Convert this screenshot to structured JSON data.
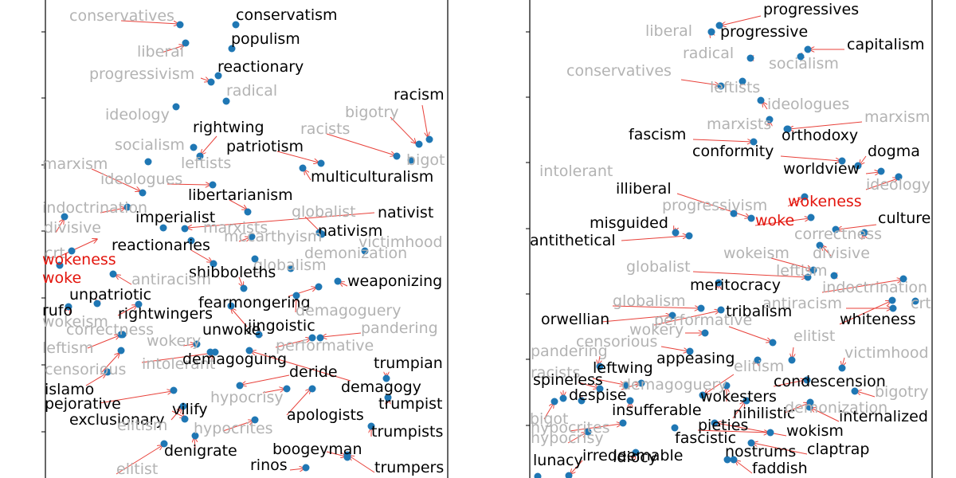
{
  "colors": {
    "dot": "#1f77b4",
    "arrow": "#e8413a",
    "black": "#000000",
    "gray": "#b3b3b3",
    "red": "#e3140c"
  },
  "panels": [
    {
      "id": "left",
      "words": [
        {
          "t": "conservatives",
          "s": "gray"
        },
        {
          "t": "conservatism",
          "s": "black"
        },
        {
          "t": "populism",
          "s": "black"
        },
        {
          "t": "liberal",
          "s": "gray"
        },
        {
          "t": "reactionary",
          "s": "black"
        },
        {
          "t": "progressivism",
          "s": "gray"
        },
        {
          "t": "radical",
          "s": "gray"
        },
        {
          "t": "racism",
          "s": "black"
        },
        {
          "t": "ideology",
          "s": "gray"
        },
        {
          "t": "bigotry",
          "s": "gray"
        },
        {
          "t": "rightwing",
          "s": "black"
        },
        {
          "t": "racists",
          "s": "gray"
        },
        {
          "t": "patriotism",
          "s": "black"
        },
        {
          "t": "socialism",
          "s": "gray"
        },
        {
          "t": "bigot",
          "s": "gray"
        },
        {
          "t": "marxism",
          "s": "gray"
        },
        {
          "t": "leftists",
          "s": "gray"
        },
        {
          "t": "multiculturalism",
          "s": "black"
        },
        {
          "t": "ideologues",
          "s": "gray"
        },
        {
          "t": "libertarianism",
          "s": "black"
        },
        {
          "t": "indoctrination",
          "s": "gray"
        },
        {
          "t": "globalist",
          "s": "gray"
        },
        {
          "t": "nativist",
          "s": "black"
        },
        {
          "t": "imperialist",
          "s": "black"
        },
        {
          "t": "divisive",
          "s": "gray"
        },
        {
          "t": "marxists",
          "s": "gray"
        },
        {
          "t": "nativism",
          "s": "black"
        },
        {
          "t": "mccarthyism",
          "s": "gray"
        },
        {
          "t": "victimhood",
          "s": "gray"
        },
        {
          "t": "reactionaries",
          "s": "black"
        },
        {
          "t": "crt",
          "s": "gray"
        },
        {
          "t": "demonization",
          "s": "gray"
        },
        {
          "t": "wokeness",
          "s": "red"
        },
        {
          "t": "globalism",
          "s": "gray"
        },
        {
          "t": "shibboleths",
          "s": "black"
        },
        {
          "t": "woke",
          "s": "red"
        },
        {
          "t": "antiracism",
          "s": "gray"
        },
        {
          "t": "weaponizing",
          "s": "black"
        },
        {
          "t": "unpatriotic",
          "s": "black"
        },
        {
          "t": "fearmongering",
          "s": "black"
        },
        {
          "t": "rufo",
          "s": "black"
        },
        {
          "t": "rightwingers",
          "s": "black"
        },
        {
          "t": "demagoguery",
          "s": "gray"
        },
        {
          "t": "wokeism",
          "s": "gray"
        },
        {
          "t": "jingoistic",
          "s": "black"
        },
        {
          "t": "correctness",
          "s": "gray"
        },
        {
          "t": "unwoke",
          "s": "black"
        },
        {
          "t": "pandering",
          "s": "gray"
        },
        {
          "t": "wokery",
          "s": "gray"
        },
        {
          "t": "leftism",
          "s": "gray"
        },
        {
          "t": "performative",
          "s": "gray"
        },
        {
          "t": "intolerant",
          "s": "gray"
        },
        {
          "t": "demagoguing",
          "s": "black"
        },
        {
          "t": "trumpian",
          "s": "black"
        },
        {
          "t": "censorious",
          "s": "gray"
        },
        {
          "t": "deride",
          "s": "black"
        },
        {
          "t": "islamo",
          "s": "black"
        },
        {
          "t": "demagogy",
          "s": "black"
        },
        {
          "t": "hypocrisy",
          "s": "gray"
        },
        {
          "t": "pejorative",
          "s": "black"
        },
        {
          "t": "trumpist",
          "s": "black"
        },
        {
          "t": "vilify",
          "s": "black"
        },
        {
          "t": "apologists",
          "s": "black"
        },
        {
          "t": "exclusionary",
          "s": "black"
        },
        {
          "t": "elitism",
          "s": "gray"
        },
        {
          "t": "hypocrites",
          "s": "gray"
        },
        {
          "t": "trumpists",
          "s": "black"
        },
        {
          "t": "denigrate",
          "s": "black"
        },
        {
          "t": "boogeyman",
          "s": "black"
        },
        {
          "t": "elitist",
          "s": "gray"
        },
        {
          "t": "rinos",
          "s": "black"
        },
        {
          "t": "trumpers",
          "s": "black"
        }
      ]
    },
    {
      "id": "right",
      "words": [
        {
          "t": "progressives",
          "s": "black"
        },
        {
          "t": "liberal",
          "s": "gray"
        },
        {
          "t": "progressive",
          "s": "black"
        },
        {
          "t": "capitalism",
          "s": "black"
        },
        {
          "t": "radical",
          "s": "gray"
        },
        {
          "t": "socialism",
          "s": "gray"
        },
        {
          "t": "conservatives",
          "s": "gray"
        },
        {
          "t": "leftists",
          "s": "gray"
        },
        {
          "t": "ideologues",
          "s": "gray"
        },
        {
          "t": "marxism",
          "s": "gray"
        },
        {
          "t": "marxists",
          "s": "gray"
        },
        {
          "t": "fascism",
          "s": "black"
        },
        {
          "t": "orthodoxy",
          "s": "black"
        },
        {
          "t": "dogma",
          "s": "black"
        },
        {
          "t": "conformity",
          "s": "black"
        },
        {
          "t": "worldview",
          "s": "black"
        },
        {
          "t": "intolerant",
          "s": "gray"
        },
        {
          "t": "ideology",
          "s": "gray"
        },
        {
          "t": "illiberal",
          "s": "black"
        },
        {
          "t": "progressivism",
          "s": "gray"
        },
        {
          "t": "wokeness",
          "s": "red"
        },
        {
          "t": "culture",
          "s": "black"
        },
        {
          "t": "misguided",
          "s": "black"
        },
        {
          "t": "woke",
          "s": "red"
        },
        {
          "t": "correctness",
          "s": "gray"
        },
        {
          "t": "antithetical",
          "s": "black"
        },
        {
          "t": "divisive",
          "s": "gray"
        },
        {
          "t": "wokeism",
          "s": "gray"
        },
        {
          "t": "globalist",
          "s": "gray"
        },
        {
          "t": "leftism",
          "s": "gray"
        },
        {
          "t": "indoctrination",
          "s": "gray"
        },
        {
          "t": "meritocracy",
          "s": "black"
        },
        {
          "t": "antiracism",
          "s": "gray"
        },
        {
          "t": "crt",
          "s": "gray"
        },
        {
          "t": "globalism",
          "s": "gray"
        },
        {
          "t": "tribalism",
          "s": "black"
        },
        {
          "t": "orwellian",
          "s": "black"
        },
        {
          "t": "performative",
          "s": "gray"
        },
        {
          "t": "whiteness",
          "s": "black"
        },
        {
          "t": "wokery",
          "s": "gray"
        },
        {
          "t": "elitist",
          "s": "gray"
        },
        {
          "t": "censorious",
          "s": "gray"
        },
        {
          "t": "pandering",
          "s": "gray"
        },
        {
          "t": "victimhood",
          "s": "gray"
        },
        {
          "t": "appeasing",
          "s": "black"
        },
        {
          "t": "leftwing",
          "s": "black"
        },
        {
          "t": "elitism",
          "s": "gray"
        },
        {
          "t": "racists",
          "s": "gray"
        },
        {
          "t": "condescension",
          "s": "black"
        },
        {
          "t": "spineless",
          "s": "black"
        },
        {
          "t": "demagoguery",
          "s": "gray"
        },
        {
          "t": "bigotry",
          "s": "gray"
        },
        {
          "t": "despise",
          "s": "black"
        },
        {
          "t": "wokesters",
          "s": "black"
        },
        {
          "t": "insufferable",
          "s": "black"
        },
        {
          "t": "nihilistic",
          "s": "black"
        },
        {
          "t": "demonization",
          "s": "gray"
        },
        {
          "t": "bigot",
          "s": "gray"
        },
        {
          "t": "internalized",
          "s": "black"
        },
        {
          "t": "hypocrites",
          "s": "gray"
        },
        {
          "t": "pieties",
          "s": "black"
        },
        {
          "t": "wokism",
          "s": "black"
        },
        {
          "t": "hypocrisy",
          "s": "gray"
        },
        {
          "t": "fascistic",
          "s": "black"
        },
        {
          "t": "claptrap",
          "s": "black"
        },
        {
          "t": "lunacy",
          "s": "black"
        },
        {
          "t": "irredeemable",
          "s": "black"
        },
        {
          "t": "idiocy",
          "s": "black"
        },
        {
          "t": "nostrums",
          "s": "black"
        },
        {
          "t": "faddish",
          "s": "black"
        }
      ]
    }
  ]
}
